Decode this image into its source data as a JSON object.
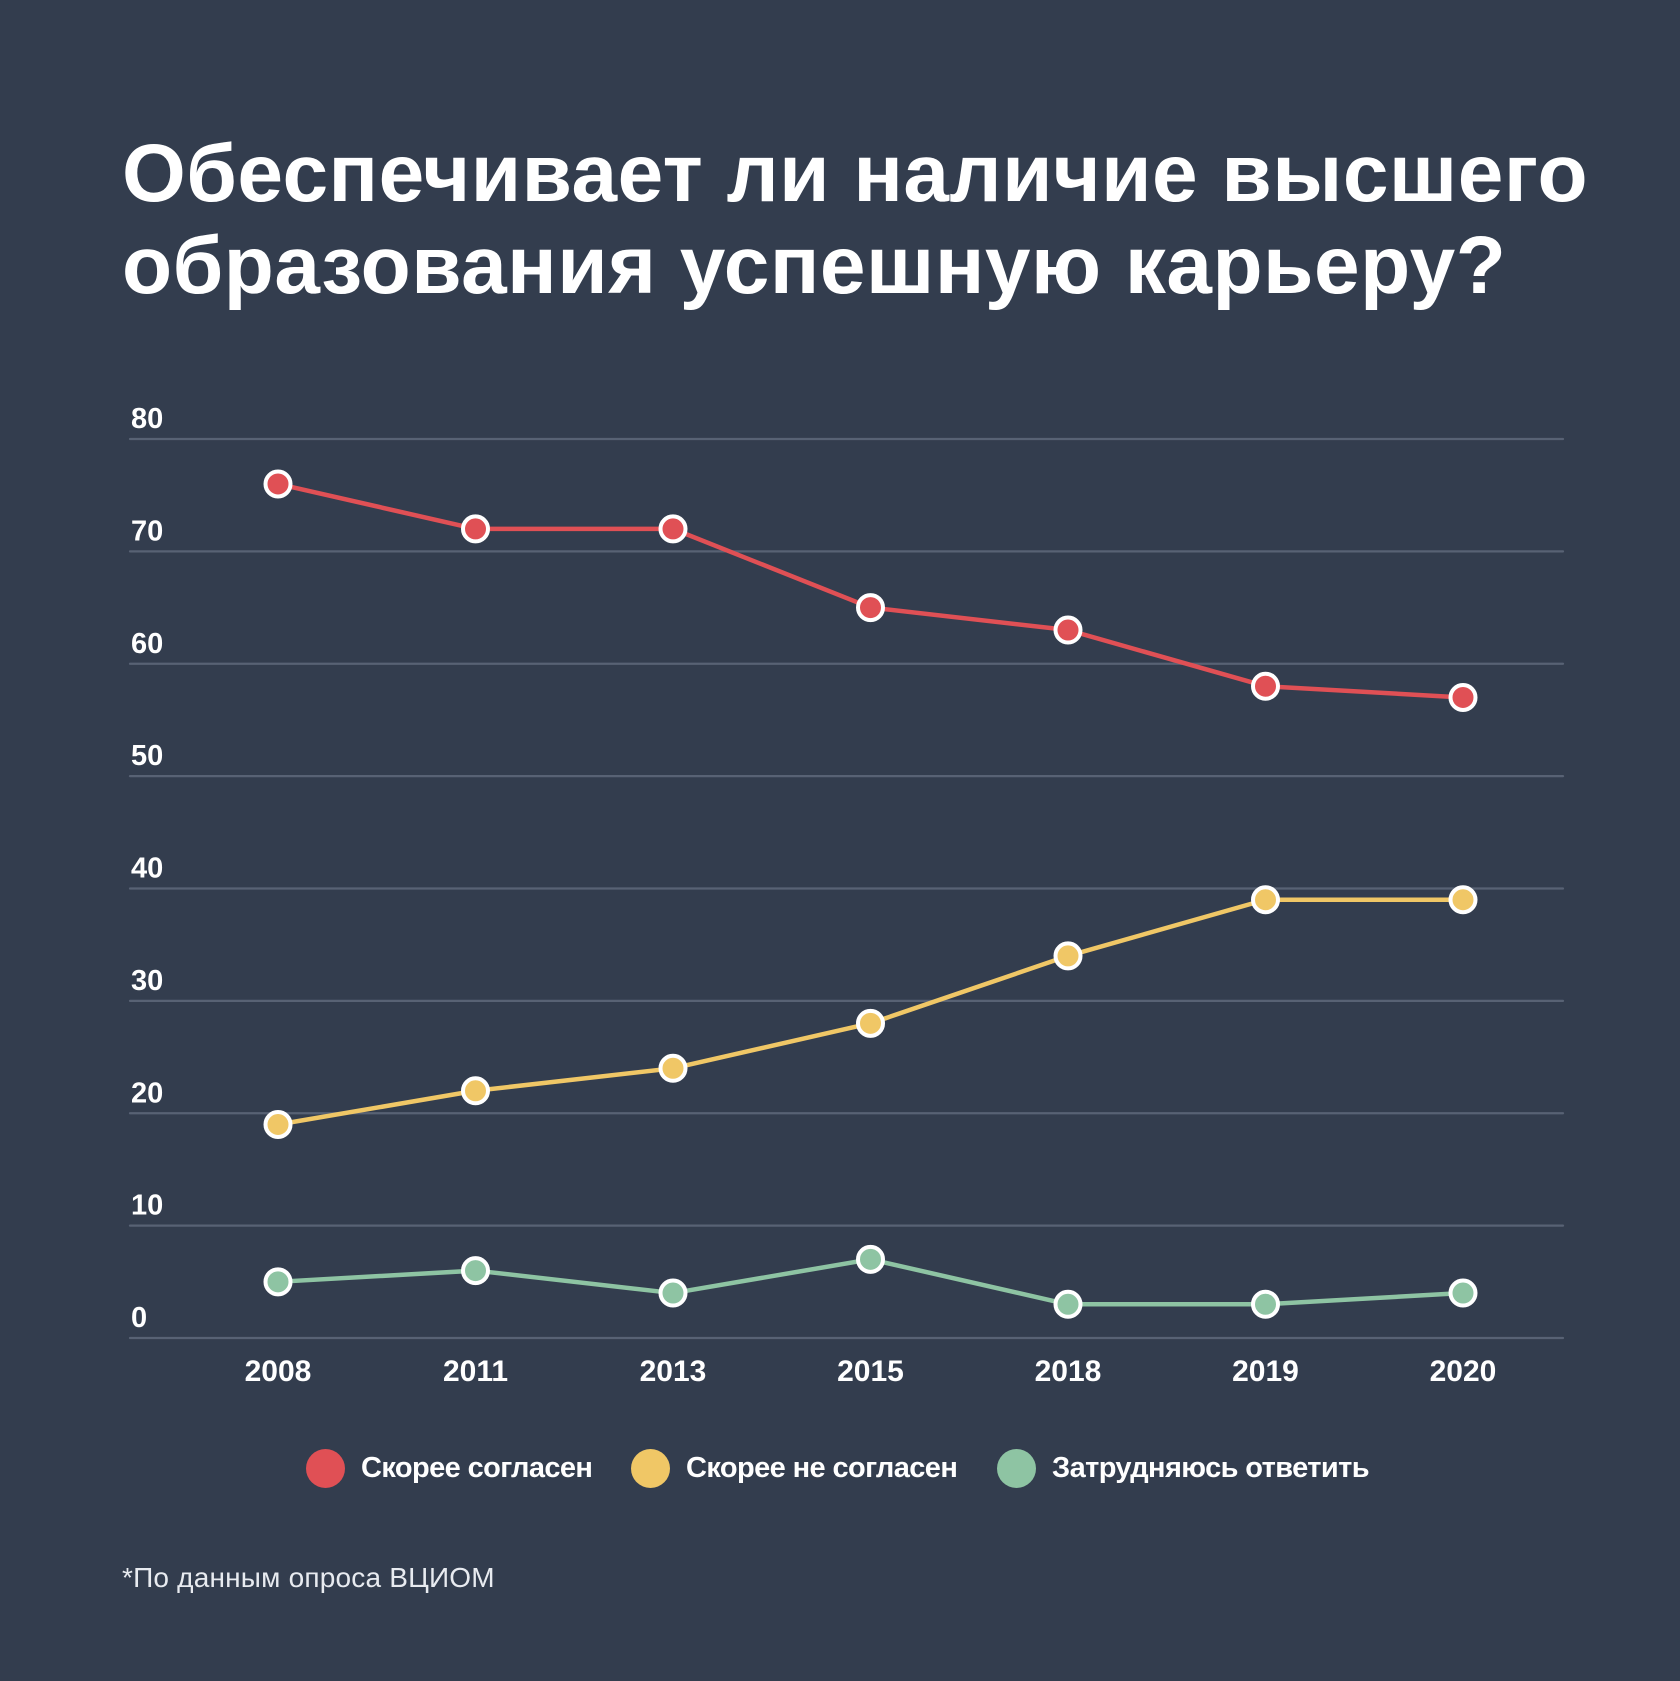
{
  "title_lines": [
    "Обеспечивает ли наличие высшего",
    "образования успешную карьеру?"
  ],
  "footnote": "*По данным опроса ВЦИОМ",
  "colors": {
    "background": "#333d4e",
    "gridline": "#586274",
    "agree": "#e05055",
    "disagree": "#f0c766",
    "undecided": "#8ec4a3",
    "marker_outline": "#ffffff"
  },
  "chart_data": {
    "type": "line",
    "title": "Обеспечивает ли наличие высшего образования успешную карьеру?",
    "xlabel": "",
    "ylabel": "",
    "x": [
      "2008",
      "2011",
      "2013",
      "2015",
      "2018",
      "2019",
      "2020"
    ],
    "ylim": [
      0,
      80
    ],
    "yticks": [
      0,
      10,
      20,
      30,
      40,
      50,
      60,
      70,
      80
    ],
    "grid": true,
    "legend_position": "bottom-center",
    "series": [
      {
        "name": "Скорее согласен",
        "color": "#e05055",
        "values": [
          76,
          72,
          72,
          65,
          63,
          58,
          57
        ]
      },
      {
        "name": "Скорее не согласен",
        "color": "#f0c766",
        "values": [
          19,
          22,
          24,
          28,
          34,
          39,
          39
        ]
      },
      {
        "name": "Затрудняюсь ответить",
        "color": "#8ec4a3",
        "values": [
          5,
          6,
          4,
          7,
          3,
          3,
          4
        ]
      }
    ],
    "source_note": "*По данным опроса ВЦИОМ"
  }
}
